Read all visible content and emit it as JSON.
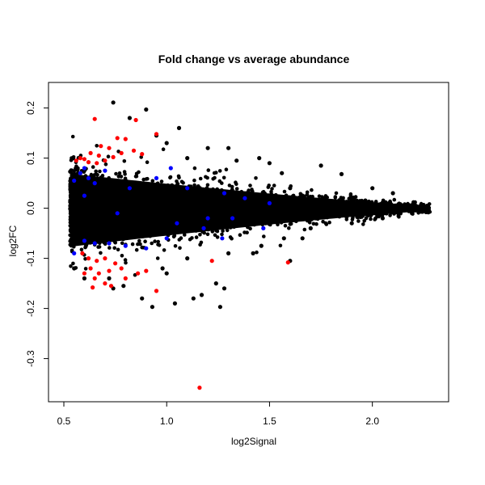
{
  "chart_data": {
    "type": "scatter",
    "title": "Fold change vs average abundance",
    "xlabel": "log2Signal",
    "ylabel": "log2FC",
    "xlim": [
      0.5,
      2.3
    ],
    "ylim": [
      -0.37,
      0.23
    ],
    "x_ticks": [
      0.5,
      1.0,
      1.5,
      2.0
    ],
    "x_tick_labels": [
      "0.5",
      "1.0",
      "1.5",
      "2.0"
    ],
    "y_ticks": [
      -0.3,
      -0.2,
      -0.1,
      0.0,
      0.1,
      0.2
    ],
    "y_tick_labels": [
      "-0.3",
      "-0.2",
      "-0.1",
      "0.0",
      "0.1",
      "0.2"
    ],
    "grid": false,
    "legend": "none",
    "colors": {
      "black": "#000000",
      "red": "#ff0000",
      "blue": "#0000ff"
    },
    "series": [
      {
        "color": "black",
        "points": [
          [
            0.74,
            0.211
          ],
          [
            0.9,
            0.197
          ],
          [
            0.82,
            0.18
          ],
          [
            1.06,
            0.16
          ],
          [
            1.2,
            0.12
          ],
          [
            1.3,
            0.12
          ],
          [
            1.45,
            0.1
          ],
          [
            1.5,
            0.09
          ],
          [
            1.75,
            0.085
          ],
          [
            1.85,
            0.068
          ],
          [
            1.56,
            0.07
          ],
          [
            1.34,
            0.095
          ],
          [
            1.1,
            0.1
          ],
          [
            1.0,
            0.13
          ],
          [
            0.95,
            0.145
          ],
          [
            2.0,
            0.04
          ],
          [
            2.1,
            0.03
          ],
          [
            2.2,
            0.012
          ],
          [
            2.27,
            0.005
          ],
          [
            1.6,
            0.04
          ],
          [
            1.7,
            -0.04
          ],
          [
            1.9,
            -0.03
          ],
          [
            2.05,
            -0.02
          ],
          [
            1.57,
            -0.06
          ],
          [
            1.66,
            -0.06
          ],
          [
            1.46,
            -0.075
          ],
          [
            1.42,
            -0.09
          ],
          [
            1.6,
            -0.105
          ],
          [
            1.3,
            -0.09
          ],
          [
            1.24,
            -0.15
          ],
          [
            1.28,
            -0.16
          ],
          [
            1.26,
            -0.197
          ],
          [
            1.17,
            -0.173
          ],
          [
            1.13,
            -0.18
          ],
          [
            1.04,
            -0.19
          ],
          [
            0.93,
            -0.197
          ],
          [
            0.79,
            -0.155
          ],
          [
            0.74,
            -0.16
          ],
          [
            0.72,
            -0.14
          ],
          [
            1.1,
            -0.1
          ],
          [
            0.98,
            -0.12
          ],
          [
            1.0,
            -0.13
          ],
          [
            0.6,
            -0.14
          ],
          [
            0.55,
            -0.12
          ],
          [
            0.88,
            -0.18
          ]
        ]
      },
      {
        "color": "red",
        "points": [
          [
            0.65,
            0.178
          ],
          [
            0.85,
            0.176
          ],
          [
            0.95,
            0.148
          ],
          [
            0.76,
            0.14
          ],
          [
            0.8,
            0.138
          ],
          [
            0.68,
            0.124
          ],
          [
            0.72,
            0.12
          ],
          [
            0.63,
            0.11
          ],
          [
            0.67,
            0.105
          ],
          [
            0.58,
            0.1
          ],
          [
            0.6,
            0.098
          ],
          [
            0.7,
            0.095
          ],
          [
            0.74,
            0.102
          ],
          [
            0.78,
            0.11
          ],
          [
            0.84,
            0.115
          ],
          [
            0.56,
            0.095
          ],
          [
            0.62,
            0.092
          ],
          [
            0.66,
            0.09
          ],
          [
            0.88,
            0.108
          ],
          [
            0.59,
            -0.09
          ],
          [
            0.62,
            -0.1
          ],
          [
            0.66,
            -0.105
          ],
          [
            0.7,
            -0.1
          ],
          [
            0.75,
            -0.11
          ],
          [
            0.63,
            -0.12
          ],
          [
            0.67,
            -0.13
          ],
          [
            0.72,
            -0.125
          ],
          [
            0.78,
            -0.12
          ],
          [
            0.6,
            -0.13
          ],
          [
            0.65,
            -0.14
          ],
          [
            0.7,
            -0.15
          ],
          [
            0.73,
            -0.155
          ],
          [
            0.8,
            -0.14
          ],
          [
            0.86,
            -0.13
          ],
          [
            0.9,
            -0.125
          ],
          [
            0.64,
            -0.158
          ],
          [
            0.95,
            -0.165
          ],
          [
            1.16,
            -0.358
          ],
          [
            1.59,
            -0.108
          ],
          [
            1.22,
            -0.105
          ]
        ]
      },
      {
        "color": "blue",
        "points": [
          [
            0.6,
            0.08
          ],
          [
            0.62,
            0.06
          ],
          [
            0.58,
            0.07
          ],
          [
            0.65,
            0.05
          ],
          [
            0.7,
            0.075
          ],
          [
            0.82,
            0.04
          ],
          [
            0.95,
            0.06
          ],
          [
            1.02,
            0.08
          ],
          [
            1.1,
            0.04
          ],
          [
            1.28,
            0.03
          ],
          [
            1.38,
            0.02
          ],
          [
            1.5,
            0.01
          ],
          [
            0.6,
            0.025
          ],
          [
            0.55,
            0.055
          ],
          [
            0.76,
            -0.01
          ],
          [
            1.2,
            -0.02
          ],
          [
            1.32,
            -0.02
          ],
          [
            1.47,
            -0.04
          ],
          [
            1.05,
            -0.03
          ],
          [
            0.9,
            -0.08
          ],
          [
            0.65,
            -0.07
          ],
          [
            0.6,
            -0.065
          ],
          [
            0.55,
            -0.09
          ],
          [
            0.72,
            -0.07
          ],
          [
            0.8,
            -0.075
          ],
          [
            1.18,
            -0.04
          ],
          [
            1.27,
            -0.06
          ],
          [
            1.0,
            -0.06
          ]
        ]
      }
    ]
  }
}
